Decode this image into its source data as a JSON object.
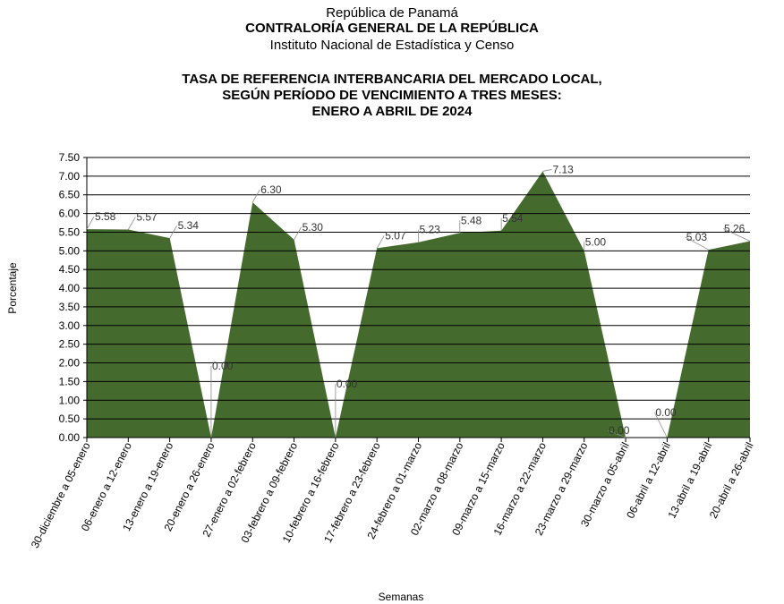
{
  "header": {
    "line1": "República de Panamá",
    "line2": "CONTRALORÍA GENERAL DE LA REPÚBLICA",
    "line3": "Instituto Nacional de Estadística y Censo"
  },
  "colors": {
    "area": "#456a2e",
    "label": "#333333",
    "leader": "#8a8a8a"
  },
  "chart_data": {
    "type": "area",
    "title": [
      "TASA DE REFERENCIA INTERBANCARIA DEL MERCADO LOCAL,",
      "SEGÚN PERÍODO DE VENCIMIENTO A TRES MESES:",
      "ENERO A ABRIL DE 2024"
    ],
    "xlabel": "Semanas",
    "ylabel": "Porcentaje",
    "ylim": [
      0,
      7.5
    ],
    "yticks": [
      "0.00",
      "0.50",
      "1.00",
      "1.50",
      "2.00",
      "2.50",
      "3.00",
      "3.50",
      "4.00",
      "4.50",
      "5.00",
      "5.50",
      "6.00",
      "6.50",
      "7.00",
      "7.50"
    ],
    "grid": true,
    "categories": [
      "30-diciembre a 05-enero",
      "06-enero a 12-enero",
      "13-enero a 19-enero",
      "20-enero a 26-enero",
      "27-enero a 02-febrero",
      "03-febrero a 09-febrero",
      "10-febrero a 16-febrero",
      "17-febrero a 23-febrero",
      "24-febrero a 01-marzo",
      "02-marzo a 08-marzo",
      "09-marzo a 15-marzo",
      "16-marzo a 22-marzo",
      "23-marzo a 29-marzo",
      "30-marzo a 05-abril",
      "06-abril a 12-abril",
      "13-abril a 19-abril",
      "20-abril a 26-abril"
    ],
    "values": [
      5.58,
      5.57,
      5.34,
      0.0,
      6.3,
      5.3,
      0.0,
      5.07,
      5.23,
      5.48,
      5.54,
      7.13,
      5.0,
      0.0,
      0.0,
      5.03,
      5.26
    ],
    "data_labels": [
      "5.58",
      "5.57",
      "5.34",
      "0.00",
      "6.30",
      "5.30",
      "0.00",
      "5.07",
      "5.23",
      "5.48",
      "5.54",
      "7.13",
      "5.00",
      "0.00",
      "0.00",
      "5.03",
      "5.26"
    ]
  }
}
